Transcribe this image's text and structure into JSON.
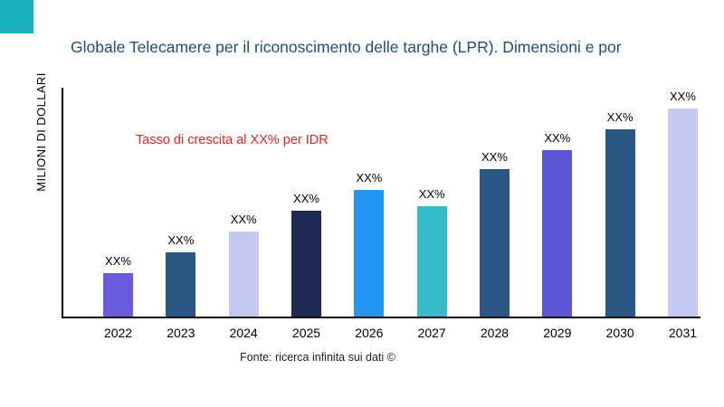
{
  "ui": {
    "corner_color": "#1ab2bc",
    "title_color": "#1f4e79",
    "annotation_color": "#e8251f",
    "axis_color": "#000000"
  },
  "chart_data": {
    "type": "bar",
    "title": "Globale Telecamere per il riconoscimento delle targhe (LPR). Dimensioni e por",
    "ylabel": "MILIONI DI DOLLARI",
    "annotation": "Tasso di crescita al XX% per IDR",
    "source": "Fonte: ricerca infinita sui dati ©",
    "categories": [
      "2022",
      "2023",
      "2024",
      "2025",
      "2026",
      "2027",
      "2028",
      "2029",
      "2030",
      "2031"
    ],
    "values": [
      21,
      31,
      41,
      51,
      61,
      53,
      71,
      80,
      90,
      100
    ],
    "value_unit": "relative-height (actual values masked as XX% in chart)",
    "bar_labels": [
      "XX%",
      "XX%",
      "XX%",
      "XX%",
      "XX%",
      "XX%",
      "XX%",
      "XX%",
      "XX%",
      "XX%"
    ],
    "colors": [
      "#6a5ae0",
      "#2a5783",
      "#c5c9f0",
      "#1d2b53",
      "#2196f3",
      "#35bcc9",
      "#2a5783",
      "#5d55d8",
      "#2a5783",
      "#c5c9f0"
    ],
    "ylim": [
      0,
      110
    ],
    "grid": false,
    "legend": null
  }
}
